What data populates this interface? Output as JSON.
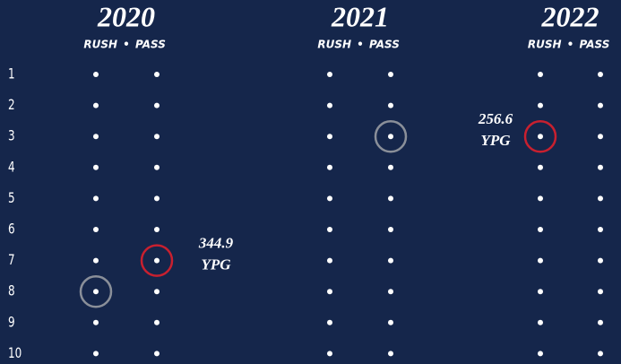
{
  "ranks": [
    1,
    2,
    3,
    4,
    5,
    6,
    7,
    8,
    9,
    10
  ],
  "separator": "•",
  "years": [
    {
      "year": "2020",
      "columns": [
        "RUSH",
        "PASS"
      ],
      "highlights": [
        {
          "column": 0,
          "rank": 8,
          "color": "#8a8f99"
        },
        {
          "column": 1,
          "rank": 7,
          "color": "#c8202f",
          "annotation": [
            "344.9",
            "YPG"
          ]
        }
      ]
    },
    {
      "year": "2021",
      "columns": [
        "RUSH",
        "PASS"
      ],
      "highlights": [
        {
          "column": 1,
          "rank": 3,
          "color": "#8a8f99"
        }
      ]
    },
    {
      "year": "2022",
      "columns": [
        "RUSH",
        "PASS"
      ],
      "highlights": [
        {
          "column": 0,
          "rank": 3,
          "color": "#c8202f",
          "annotation": [
            "256.6",
            "YPG"
          ]
        }
      ]
    }
  ]
}
